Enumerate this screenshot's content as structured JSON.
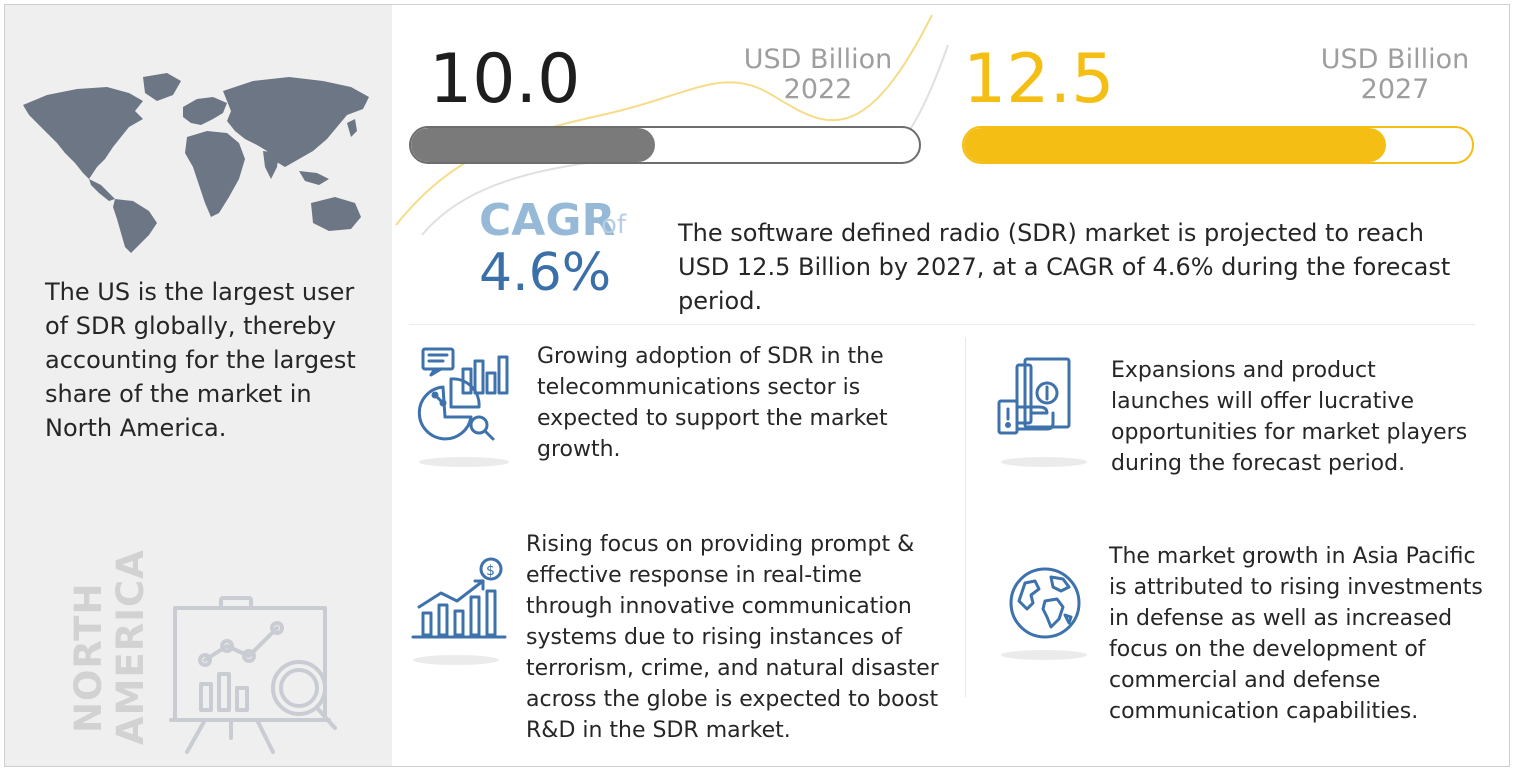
{
  "market": {
    "value_2022": "10.0",
    "unit_2022": "USD Billion",
    "year_2022": "2022",
    "progress_2022": 0.48,
    "value_2027": "12.5",
    "unit_2027": "USD Billion",
    "year_2027": "2027",
    "progress_2027": 0.83
  },
  "cagr": {
    "label": "CAGR",
    "of": "of",
    "value": "4.6%"
  },
  "summary": "The software defined radio (SDR) market is projected to reach USD 12.5 Billion by 2027, at a CAGR of 4.6% during the forecast period.",
  "left_panel": {
    "text": "The US is the largest user of SDR globally, thereby accounting for the largest share of the market in North America.",
    "region_line1": "NORTH",
    "region_line2": "AMERICA"
  },
  "drivers": [
    {
      "icon": "analytics-report-icon",
      "text": "Growing adoption of SDR in the telecommunications sector is expected to support the market growth."
    },
    {
      "icon": "money-hand-icon",
      "text": "Expansions and product launches will offer lucrative opportunities for market players during the forecast period."
    },
    {
      "icon": "growth-chart-dollar-icon",
      "text": "Rising focus on providing prompt & effective response in real-time through innovative communication systems due to rising instances of terrorism, crime, and natural disaster across the globe is expected to boost R&D in the SDR market."
    },
    {
      "icon": "globe-icon",
      "text": "The market growth in Asia Pacific is attributed to rising investments in defense as well as increased focus on the development of commercial and defense communication capabilities."
    }
  ],
  "colors": {
    "accent_yellow": "#f5be14",
    "accent_blue": "#3a6fa7",
    "icon_blue": "#3d72ac",
    "bar_gray": "#7a7a7a",
    "map_gray": "#6d7684"
  }
}
